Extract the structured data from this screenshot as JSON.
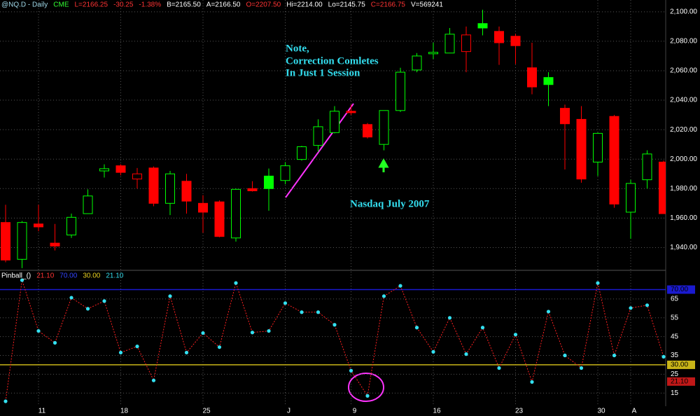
{
  "chart_data": [
    {
      "type": "candlestick",
      "header": [
        {
          "text": "@NQ.D - Daily",
          "color": "#9fd8e8"
        },
        {
          "text": "CME",
          "color": "#33ff33"
        },
        {
          "text": "L=2166.25",
          "color": "#ff3333"
        },
        {
          "text": "-30.25",
          "color": "#ff3333"
        },
        {
          "text": "-1.38%",
          "color": "#ff3333"
        },
        {
          "text": "B=2165.50",
          "color": "#ffffff"
        },
        {
          "text": "A=2166.50",
          "color": "#ffffff"
        },
        {
          "text": "O=2207.50",
          "color": "#ff3333"
        },
        {
          "text": "Hi=2214.00",
          "color": "#ffffff"
        },
        {
          "text": "Lo=2145.75",
          "color": "#ffffff"
        },
        {
          "text": "C=2166.75",
          "color": "#ff3333"
        },
        {
          "text": "V=569241",
          "color": "#ffffff"
        }
      ],
      "annotations": [
        "Note,",
        "Correction Comletes",
        "In Just 1 Session",
        "Nasdaq July 2007"
      ],
      "annotation_color": "#33ddee",
      "categories": [
        null,
        null,
        "11",
        null,
        null,
        null,
        null,
        "18",
        null,
        null,
        null,
        null,
        "25",
        null,
        null,
        null,
        null,
        "J",
        null,
        null,
        null,
        "9",
        null,
        null,
        null,
        null,
        "16",
        null,
        null,
        null,
        null,
        "23",
        null,
        null,
        null,
        null,
        "30",
        null,
        "A",
        null,
        null
      ],
      "open": [
        1957,
        1932,
        1956,
        1943,
        1948.5,
        1963,
        1992,
        1995.5,
        1986.5,
        1994,
        1970,
        1985,
        1970,
        1971,
        1946.5,
        1980,
        1988.5,
        1985.5,
        1999.8,
        2009.3,
        2018,
        2032.5,
        2023.5,
        2010,
        2033,
        2060.5,
        2071.5,
        2072,
        2073,
        2092,
        2086.7,
        2083.4,
        2062,
        2055.4,
        2034.5,
        2027,
        1998,
        2029,
        1964,
        1986,
        1998
      ],
      "high": [
        1969,
        1958,
        1969,
        1956,
        1963,
        1979.5,
        1996.5,
        1996.5,
        1994,
        1995,
        1992,
        1990,
        1975.5,
        1972,
        1980,
        1985,
        1993.6,
        1998,
        2009,
        2027,
        2036,
        2037,
        2024.5,
        2033,
        2062,
        2072,
        2079,
        2089,
        2090,
        2101.4,
        2090,
        2085,
        2079,
        2059,
        2037,
        2036,
        2018,
        2030,
        1986,
        2006,
        1999
      ],
      "low": [
        1930,
        1926,
        1951,
        1938,
        1946.5,
        1963,
        1987.5,
        1989,
        1980,
        1968,
        1962,
        1963,
        1950,
        1947,
        1944,
        1978,
        1965,
        1983,
        1999,
        2005,
        2017.5,
        2030,
        2014,
        2006,
        2032,
        2059,
        2068,
        2072,
        2059,
        2084,
        2064,
        2064.5,
        2044,
        2036,
        1993,
        1984,
        1988.5,
        1967,
        1946,
        1980,
        1963
      ],
      "close": [
        1931.5,
        1957,
        1954,
        1941,
        1960.5,
        1975,
        1993.5,
        1991,
        1990,
        1970,
        1990,
        1971.5,
        1964,
        1947.5,
        1979.5,
        1978.5,
        1980,
        1995.5,
        2008.4,
        2022,
        2032.5,
        2031.5,
        2015,
        2033,
        2059,
        2070,
        2072.5,
        2084.8,
        2084.3,
        2089,
        2079,
        2077,
        2049,
        2050.6,
        2024,
        1986.5,
        2017.5,
        1969.5,
        1983.5,
        2003.5,
        1963
      ],
      "up_color": "#00ff00",
      "down_color": "#ff0000",
      "ylim": [
        1925,
        2108
      ],
      "yticks": [
        {
          "value": 1940,
          "label": "1,940.00"
        },
        {
          "value": 1960,
          "label": "1,960.00"
        },
        {
          "value": 1980,
          "label": "1,980.00"
        },
        {
          "value": 2000,
          "label": "2,000.00"
        },
        {
          "value": 2020,
          "label": "2,020.00"
        },
        {
          "value": 2040,
          "label": "2,040.00"
        },
        {
          "value": 2060,
          "label": "2,060.00"
        },
        {
          "value": 2080,
          "label": "2,080.00"
        },
        {
          "value": 2100,
          "label": "2,100.00"
        }
      ],
      "grid": true
    },
    {
      "type": "line",
      "header": [
        {
          "text": "Pinball_()",
          "color": "#ffffff"
        },
        {
          "text": "21.10",
          "color": "#ff3333"
        },
        {
          "text": "70.00",
          "color": "#3344ff"
        },
        {
          "text": "30.00",
          "color": "#e8d020"
        },
        {
          "text": "21.10",
          "color": "#33ddee"
        }
      ],
      "series": [
        {
          "name": "Pinball_()",
          "color": "#ff2020",
          "marker_color": "#33e0f0",
          "values": [
            10.6,
            75,
            48,
            41.7,
            65.7,
            59.8,
            63.9,
            36.5,
            39.8,
            21.7,
            66.5,
            36.5,
            46.9,
            39.4,
            73.5,
            47.2,
            48,
            62.8,
            58,
            58,
            51.3,
            26.9,
            13.5,
            66.5,
            72,
            49.8,
            36.9,
            55,
            35.7,
            49.8,
            28.3,
            46.1,
            20.9,
            58.3,
            35,
            28.3,
            73.5,
            35,
            60.2,
            61.7,
            34.3
          ]
        }
      ],
      "levels": [
        {
          "value": 70,
          "label": "70.00",
          "color": "#1a1ad0"
        },
        {
          "value": 30,
          "label": "30.00",
          "color": "#c8b418"
        }
      ],
      "value_marker": {
        "value": 21.1,
        "label": "21.10",
        "color": "#c01818"
      },
      "ylim": [
        8,
        79.5
      ],
      "yticks": [
        15,
        25,
        35,
        45,
        55,
        65
      ],
      "grid": true
    }
  ]
}
